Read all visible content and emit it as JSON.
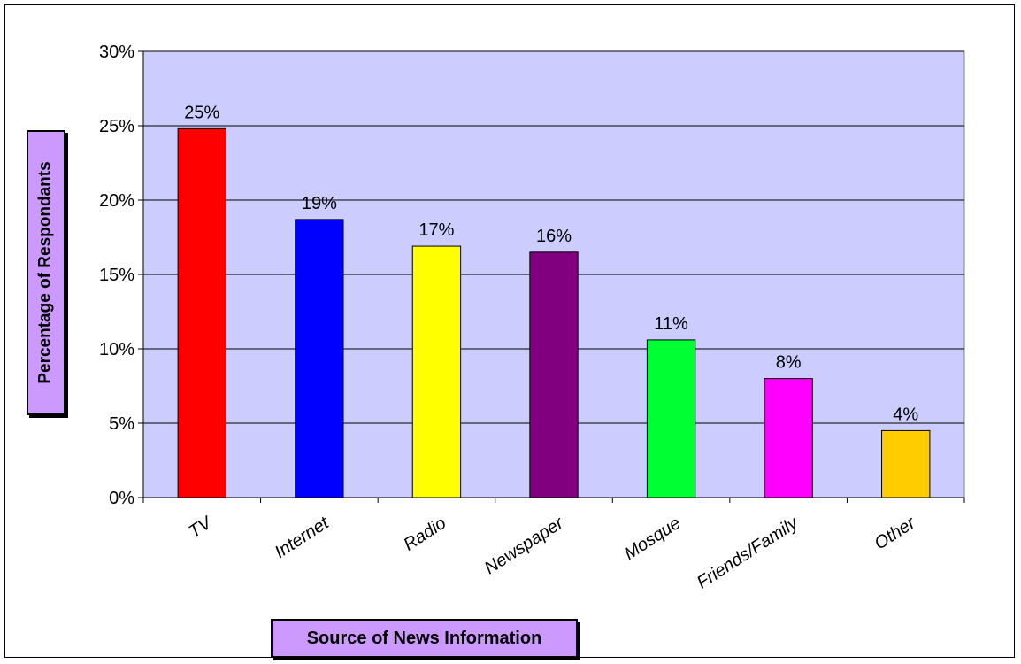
{
  "chart_data": {
    "type": "bar",
    "title": "",
    "xlabel": "Source of News Information",
    "ylabel": "Percentage of Respondants",
    "categories": [
      "TV",
      "Internet",
      "Radio",
      "Newspaper",
      "Mosque",
      "Friends/Family",
      "Other"
    ],
    "values": [
      25,
      19,
      17,
      16,
      11,
      8,
      4
    ],
    "data_labels": [
      "25%",
      "19%",
      "17%",
      "16%",
      "11%",
      "8%",
      "4%"
    ],
    "plotted_values": [
      24.8,
      18.7,
      16.9,
      16.5,
      10.6,
      8.0,
      4.5
    ],
    "bar_colors": [
      "#ff0000",
      "#0000ff",
      "#ffff00",
      "#800080",
      "#00ff33",
      "#ff00ff",
      "#ffcc00"
    ],
    "ylim": [
      0,
      30
    ],
    "yticks": [
      0,
      5,
      10,
      15,
      20,
      25,
      30
    ],
    "ytick_labels": [
      "0%",
      "5%",
      "10%",
      "15%",
      "20%",
      "25%",
      "30%"
    ],
    "grid": true,
    "plot_background": "#ccccff",
    "legend": "none"
  }
}
